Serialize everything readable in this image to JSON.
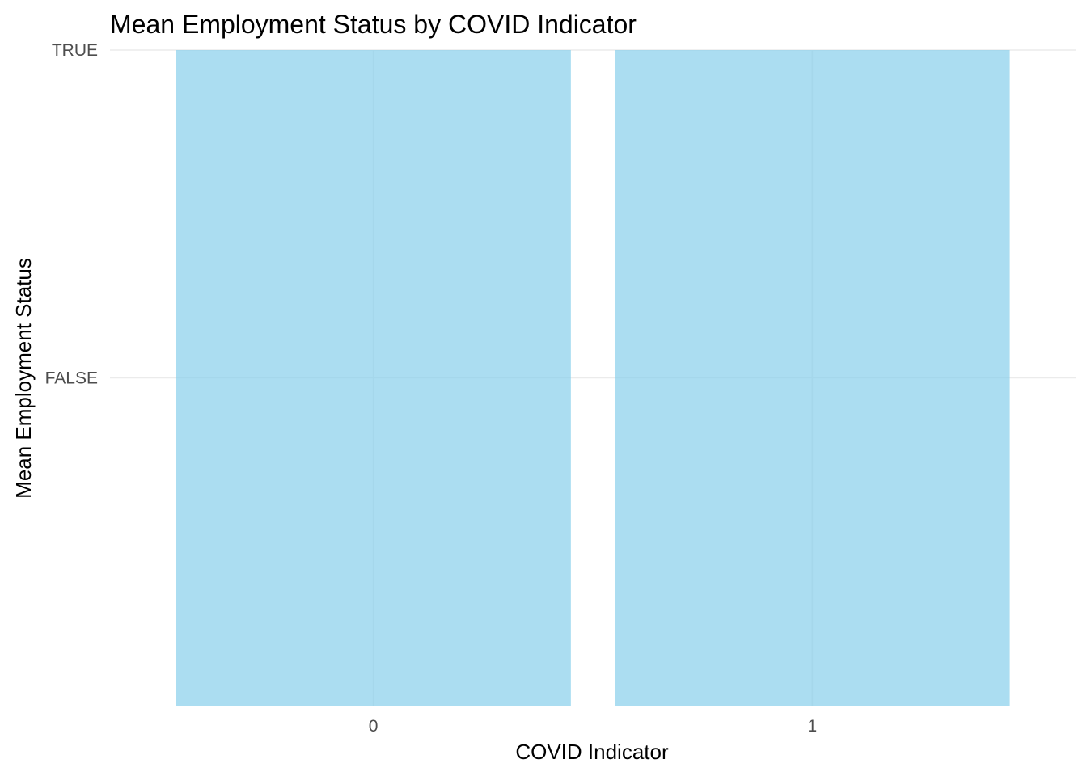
{
  "chart_data": {
    "type": "bar",
    "title": "Mean Employment Status by COVID Indicator",
    "xlabel": "COVID Indicator",
    "ylabel": "Mean Employment Status",
    "categories": [
      "0",
      "1"
    ],
    "values": [
      2,
      2
    ],
    "y_ticks": [
      {
        "label": "FALSE",
        "value": 1
      },
      {
        "label": "TRUE",
        "value": 2
      }
    ],
    "ylim": [
      0,
      2
    ],
    "grid": true,
    "bar_color": "#87CEEB",
    "bar_opacity": 0.7,
    "legend": "none"
  }
}
